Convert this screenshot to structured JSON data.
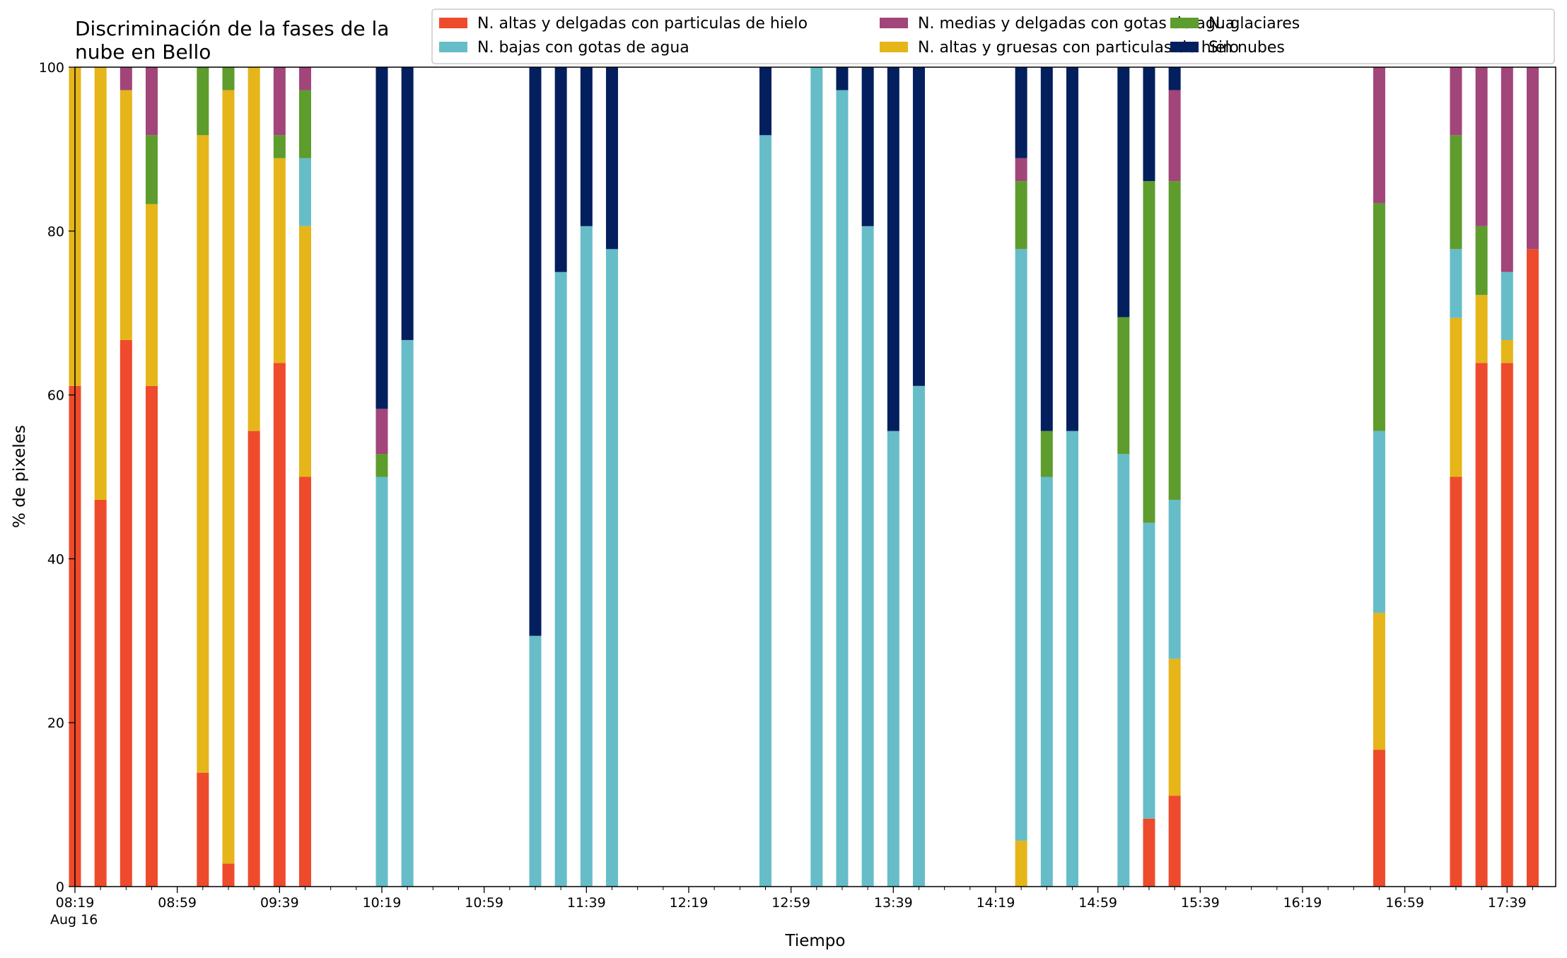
{
  "chart_data": {
    "type": "bar",
    "stacked": true,
    "title_lines": [
      "Discriminación de la fases de la",
      "nube en Bello"
    ],
    "xlabel": "Tiempo",
    "ylabel": "% de pixeles",
    "ylim": [
      0,
      100
    ],
    "yticks": [
      0,
      20,
      40,
      60,
      80,
      100
    ],
    "xlim_min": [
      499,
      1078
    ],
    "xticks": [
      {
        "min": 499,
        "label": "08:19",
        "sublabel": "Aug 16"
      },
      {
        "min": 539,
        "label": "08:59"
      },
      {
        "min": 579,
        "label": "09:39"
      },
      {
        "min": 619,
        "label": "10:19"
      },
      {
        "min": 659,
        "label": "10:59"
      },
      {
        "min": 699,
        "label": "11:39"
      },
      {
        "min": 739,
        "label": "12:19"
      },
      {
        "min": 779,
        "label": "12:59"
      },
      {
        "min": 819,
        "label": "13:39"
      },
      {
        "min": 859,
        "label": "14:19"
      },
      {
        "min": 899,
        "label": "14:59"
      },
      {
        "min": 939,
        "label": "15:39"
      },
      {
        "min": 979,
        "label": "16:19"
      },
      {
        "min": 1019,
        "label": "16:59"
      },
      {
        "min": 1059,
        "label": "17:39"
      }
    ],
    "legend_position": "top-right",
    "grid": false,
    "series": [
      {
        "key": "altas_delgadas",
        "name": "N. altas y delgadas con particulas de hielo",
        "color": "#ed4b2c"
      },
      {
        "key": "altas_gruesas",
        "name": "N. altas y gruesas con particulas de hielo",
        "color": "#e5b51a"
      },
      {
        "key": "bajas",
        "name": "N. bajas con gotas de agua",
        "color": "#66bdc8"
      },
      {
        "key": "glaciares",
        "name": "N. glaciares",
        "color": "#5d9c2d"
      },
      {
        "key": "medias",
        "name": "N. medias y delgadas con gotas de agua",
        "color": "#a1457a"
      },
      {
        "key": "sin_nubes",
        "name": "Sin nubes",
        "color": "#041f5e"
      }
    ],
    "legend_order": [
      "altas_delgadas",
      "bajas",
      "medias",
      "altas_gruesas",
      "glaciares",
      "sin_nubes"
    ],
    "bars": [
      {
        "time": "08:19",
        "values": [
          61.1,
          38.9,
          0,
          0,
          0,
          0
        ]
      },
      {
        "time": "08:29",
        "values": [
          47.2,
          52.8,
          0,
          0,
          0,
          0
        ]
      },
      {
        "time": "08:39",
        "values": [
          66.7,
          30.5,
          0,
          0,
          2.8,
          0
        ]
      },
      {
        "time": "08:49",
        "values": [
          61.1,
          22.2,
          0,
          8.4,
          8.3,
          0
        ]
      },
      {
        "time": "09:09",
        "values": [
          13.9,
          77.8,
          0,
          8.3,
          0,
          0
        ]
      },
      {
        "time": "09:19",
        "values": [
          2.8,
          94.4,
          0,
          2.8,
          0,
          0
        ]
      },
      {
        "time": "09:29",
        "values": [
          55.6,
          44.4,
          0,
          0,
          0,
          0
        ]
      },
      {
        "time": "09:39",
        "values": [
          63.9,
          25.0,
          0,
          2.8,
          8.3,
          0
        ]
      },
      {
        "time": "09:49",
        "values": [
          50.0,
          30.6,
          8.3,
          8.3,
          2.8,
          0
        ]
      },
      {
        "time": "10:19",
        "values": [
          0,
          0,
          50.0,
          2.8,
          5.5,
          41.7
        ]
      },
      {
        "time": "10:29",
        "values": [
          0,
          0,
          66.7,
          0,
          0,
          33.3
        ]
      },
      {
        "time": "11:19",
        "values": [
          0,
          0,
          30.6,
          0,
          0,
          69.4
        ]
      },
      {
        "time": "11:29",
        "values": [
          0,
          0,
          75.0,
          0,
          0,
          25.0
        ]
      },
      {
        "time": "11:39",
        "values": [
          0,
          0,
          80.6,
          0,
          0,
          19.4
        ]
      },
      {
        "time": "11:49",
        "values": [
          0,
          0,
          77.8,
          0,
          0,
          22.2
        ]
      },
      {
        "time": "12:49",
        "values": [
          0,
          0,
          91.7,
          0,
          0,
          8.3
        ]
      },
      {
        "time": "13:09",
        "values": [
          0,
          0,
          100,
          0,
          0,
          0
        ]
      },
      {
        "time": "13:19",
        "values": [
          0,
          0,
          97.2,
          0,
          0,
          2.8
        ]
      },
      {
        "time": "13:29",
        "values": [
          0,
          0,
          80.6,
          0,
          0,
          19.4
        ]
      },
      {
        "time": "13:39",
        "values": [
          0,
          0,
          55.6,
          0,
          0,
          44.4
        ]
      },
      {
        "time": "13:49",
        "values": [
          0,
          0,
          61.1,
          0,
          0,
          38.9
        ]
      },
      {
        "time": "14:29",
        "values": [
          0,
          5.6,
          72.2,
          8.3,
          2.8,
          11.1
        ]
      },
      {
        "time": "14:39",
        "values": [
          0,
          0,
          50.0,
          5.6,
          0,
          44.4
        ]
      },
      {
        "time": "14:49",
        "values": [
          0,
          0,
          55.6,
          0,
          0,
          44.4
        ]
      },
      {
        "time": "15:09",
        "values": [
          0,
          0,
          52.8,
          16.7,
          0,
          30.5
        ]
      },
      {
        "time": "15:19",
        "values": [
          8.3,
          0,
          36.1,
          41.7,
          0,
          13.9
        ]
      },
      {
        "time": "15:29",
        "values": [
          11.1,
          16.7,
          19.4,
          38.9,
          11.1,
          2.8
        ]
      },
      {
        "time": "16:49",
        "values": [
          16.7,
          16.7,
          22.2,
          27.8,
          16.6,
          0
        ]
      },
      {
        "time": "17:19",
        "values": [
          50.0,
          19.4,
          8.4,
          13.9,
          8.3,
          0
        ]
      },
      {
        "time": "17:29",
        "values": [
          63.9,
          8.3,
          0,
          8.4,
          19.4,
          0
        ]
      },
      {
        "time": "17:39",
        "values": [
          63.9,
          2.8,
          8.3,
          0,
          25.0,
          0
        ]
      },
      {
        "time": "17:49",
        "values": [
          77.8,
          0,
          0,
          0,
          22.2,
          0
        ]
      }
    ]
  }
}
